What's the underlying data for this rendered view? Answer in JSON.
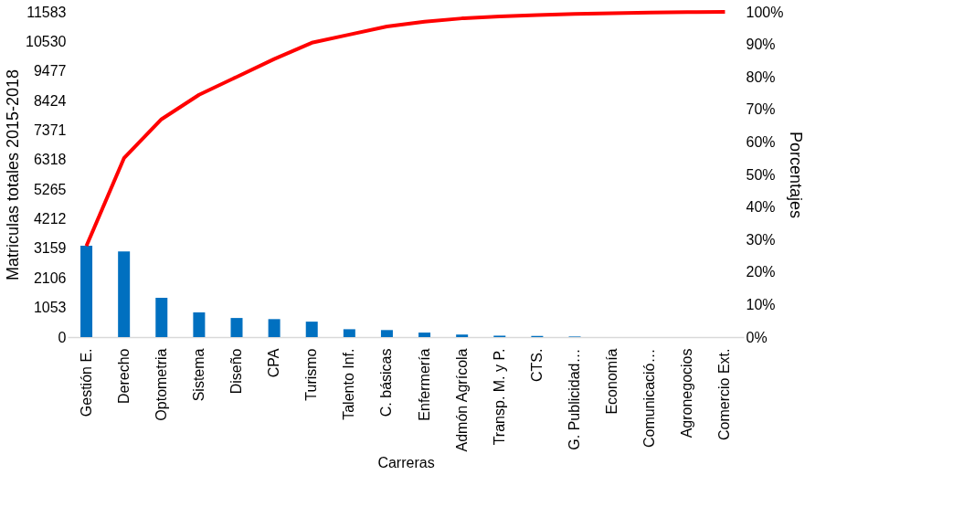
{
  "chart_data": {
    "type": "bar",
    "xlabel": "Carreras",
    "ylabel": "Matriculas totales 2015-2018",
    "y2label": "Porcentajes",
    "categories": [
      "Gestión E.",
      "Derecho",
      "Optometria",
      "Sistema",
      "Diseño",
      "CPA",
      "Turismo",
      "Talento Inf.",
      "C. básicas",
      "Enfermería",
      "Admón Agrícola",
      "Transp. M. y P.",
      "CTS.",
      "G. Publicidad…",
      "Economía",
      "Comunicació…",
      "Agronegocios",
      "Comercio Ext."
    ],
    "series": [
      {
        "color": "#0070c0",
        "values": [
          3250,
          3050,
          1400,
          880,
          680,
          640,
          550,
          280,
          250,
          160,
          90,
          50,
          40,
          20,
          null,
          null,
          0,
          0
        ]
      },
      {
        "type": "line",
        "axis": "y2",
        "color": "#ff0000",
        "values": [
          28,
          55,
          67,
          74.5,
          80,
          85.5,
          90.5,
          93,
          95.5,
          97,
          98,
          98.6,
          99,
          99.4,
          99.6,
          99.8,
          99.9,
          100
        ]
      }
    ],
    "ylim": [
      0,
      11583
    ],
    "yticks": [
      0,
      1053,
      2106,
      3159,
      4212,
      5265,
      6318,
      7371,
      8424,
      9477,
      10530,
      11583
    ],
    "y2lim": [
      0,
      100
    ],
    "y2ticks": [
      {
        "value": 0,
        "label": "0%"
      },
      {
        "value": 10,
        "label": "10%"
      },
      {
        "value": 20,
        "label": "20%"
      },
      {
        "value": 30,
        "label": "30%"
      },
      {
        "value": 40,
        "label": "40%"
      },
      {
        "value": 50,
        "label": "50%"
      },
      {
        "value": 60,
        "label": "60%"
      },
      {
        "value": 70,
        "label": "70%"
      },
      {
        "value": 80,
        "label": "80%"
      },
      {
        "value": 90,
        "label": "90%"
      },
      {
        "value": 100,
        "label": "100%"
      }
    ],
    "grid": false,
    "marker": "none",
    "line_style": "solid"
  }
}
